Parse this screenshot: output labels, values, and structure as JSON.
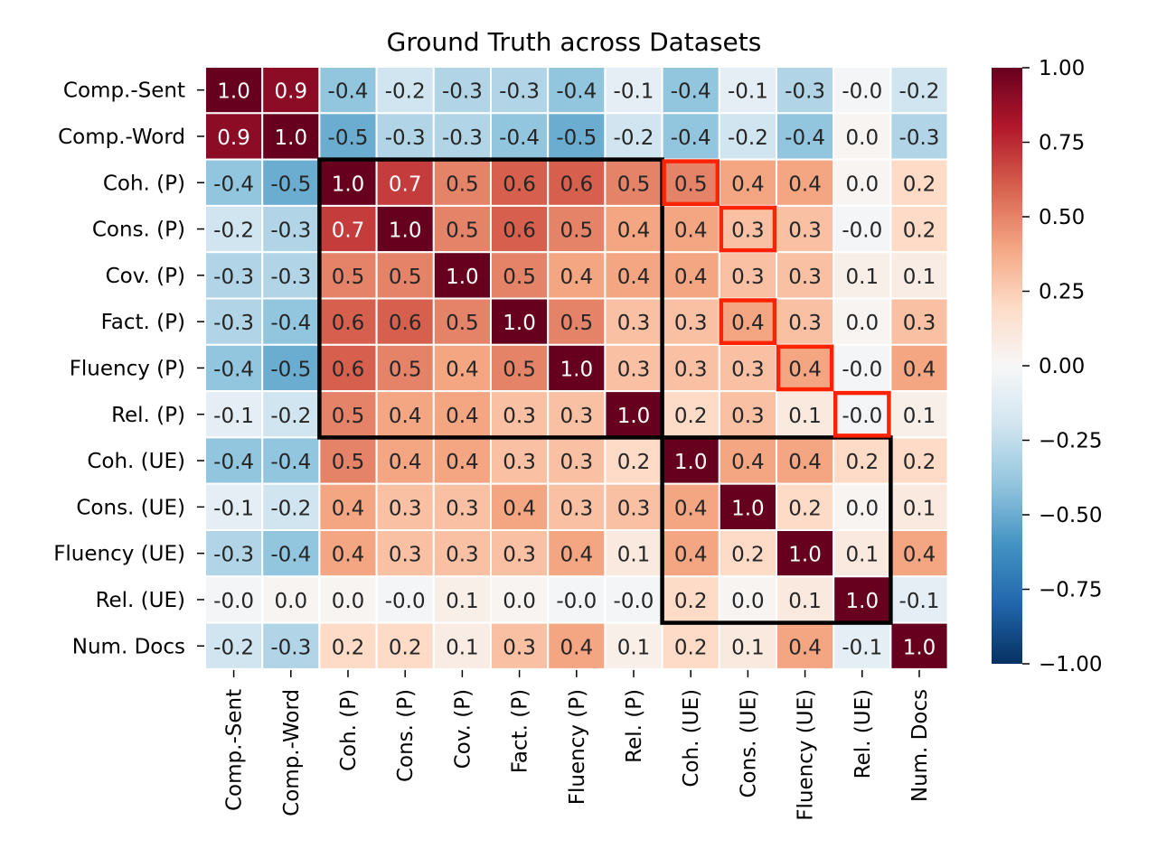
{
  "chart_data": {
    "type": "heatmap",
    "title": "Ground Truth across Datasets",
    "xlabel": "",
    "ylabel": "",
    "labels": [
      "Comp.-Sent",
      "Comp.-Word",
      "Coh. (P)",
      "Cons. (P)",
      "Cov. (P)",
      "Fact. (P)",
      "Fluency (P)",
      "Rel. (P)",
      "Coh. (UE)",
      "Cons. (UE)",
      "Fluency (UE)",
      "Rel. (UE)",
      "Num. Docs"
    ],
    "cell_labels": [
      [
        "1.0",
        "0.9",
        "-0.4",
        "-0.2",
        "-0.3",
        "-0.3",
        "-0.4",
        "-0.1",
        "-0.4",
        "-0.1",
        "-0.3",
        "-0.0",
        "-0.2"
      ],
      [
        "0.9",
        "1.0",
        "-0.5",
        "-0.3",
        "-0.3",
        "-0.4",
        "-0.5",
        "-0.2",
        "-0.4",
        "-0.2",
        "-0.4",
        "0.0",
        "-0.3"
      ],
      [
        "-0.4",
        "-0.5",
        "1.0",
        "0.7",
        "0.5",
        "0.6",
        "0.6",
        "0.5",
        "0.5",
        "0.4",
        "0.4",
        "0.0",
        "0.2"
      ],
      [
        "-0.2",
        "-0.3",
        "0.7",
        "1.0",
        "0.5",
        "0.6",
        "0.5",
        "0.4",
        "0.4",
        "0.3",
        "0.3",
        "-0.0",
        "0.2"
      ],
      [
        "-0.3",
        "-0.3",
        "0.5",
        "0.5",
        "1.0",
        "0.5",
        "0.4",
        "0.4",
        "0.4",
        "0.3",
        "0.3",
        "0.1",
        "0.1"
      ],
      [
        "-0.3",
        "-0.4",
        "0.6",
        "0.6",
        "0.5",
        "1.0",
        "0.5",
        "0.3",
        "0.3",
        "0.4",
        "0.3",
        "0.0",
        "0.3"
      ],
      [
        "-0.4",
        "-0.5",
        "0.6",
        "0.5",
        "0.4",
        "0.5",
        "1.0",
        "0.3",
        "0.3",
        "0.3",
        "0.4",
        "-0.0",
        "0.4"
      ],
      [
        "-0.1",
        "-0.2",
        "0.5",
        "0.4",
        "0.4",
        "0.3",
        "0.3",
        "1.0",
        "0.2",
        "0.3",
        "0.1",
        "-0.0",
        "0.1"
      ],
      [
        "-0.4",
        "-0.4",
        "0.5",
        "0.4",
        "0.4",
        "0.3",
        "0.3",
        "0.2",
        "1.0",
        "0.4",
        "0.4",
        "0.2",
        "0.2"
      ],
      [
        "-0.1",
        "-0.2",
        "0.4",
        "0.3",
        "0.3",
        "0.4",
        "0.3",
        "0.3",
        "0.4",
        "1.0",
        "0.2",
        "0.0",
        "0.1"
      ],
      [
        "-0.3",
        "-0.4",
        "0.4",
        "0.3",
        "0.3",
        "0.3",
        "0.4",
        "0.1",
        "0.4",
        "0.2",
        "1.0",
        "0.1",
        "0.4"
      ],
      [
        "-0.0",
        "0.0",
        "0.0",
        "-0.0",
        "0.1",
        "0.0",
        "-0.0",
        "-0.0",
        "0.2",
        "0.0",
        "0.1",
        "1.0",
        "-0.1"
      ],
      [
        "-0.2",
        "-0.3",
        "0.2",
        "0.2",
        "0.1",
        "0.3",
        "0.4",
        "0.1",
        "0.2",
        "0.1",
        "0.4",
        "-0.1",
        "1.0"
      ]
    ],
    "values": [
      [
        1.0,
        0.9,
        -0.4,
        -0.2,
        -0.3,
        -0.3,
        -0.4,
        -0.1,
        -0.4,
        -0.1,
        -0.3,
        -0.02,
        -0.2
      ],
      [
        0.9,
        1.0,
        -0.5,
        -0.3,
        -0.3,
        -0.4,
        -0.5,
        -0.2,
        -0.4,
        -0.2,
        -0.4,
        0.02,
        -0.3
      ],
      [
        -0.4,
        -0.5,
        1.0,
        0.7,
        0.5,
        0.6,
        0.6,
        0.5,
        0.5,
        0.4,
        0.4,
        0.02,
        0.2
      ],
      [
        -0.2,
        -0.3,
        0.7,
        1.0,
        0.5,
        0.6,
        0.5,
        0.4,
        0.4,
        0.3,
        0.3,
        -0.02,
        0.2
      ],
      [
        -0.3,
        -0.3,
        0.5,
        0.5,
        1.0,
        0.5,
        0.4,
        0.4,
        0.4,
        0.3,
        0.3,
        0.06,
        0.08
      ],
      [
        -0.3,
        -0.4,
        0.6,
        0.6,
        0.5,
        1.0,
        0.5,
        0.3,
        0.3,
        0.4,
        0.3,
        0.02,
        0.3
      ],
      [
        -0.4,
        -0.5,
        0.6,
        0.5,
        0.4,
        0.5,
        1.0,
        0.3,
        0.3,
        0.3,
        0.4,
        -0.02,
        0.4
      ],
      [
        -0.1,
        -0.2,
        0.5,
        0.4,
        0.4,
        0.3,
        0.3,
        1.0,
        0.2,
        0.3,
        0.1,
        -0.02,
        0.06
      ],
      [
        -0.4,
        -0.4,
        0.5,
        0.4,
        0.4,
        0.3,
        0.3,
        0.2,
        1.0,
        0.4,
        0.4,
        0.2,
        0.2
      ],
      [
        -0.1,
        -0.2,
        0.4,
        0.3,
        0.3,
        0.4,
        0.3,
        0.3,
        0.4,
        1.0,
        0.2,
        0.02,
        0.1
      ],
      [
        -0.3,
        -0.4,
        0.4,
        0.3,
        0.3,
        0.3,
        0.4,
        0.1,
        0.4,
        0.2,
        1.0,
        0.1,
        0.4
      ],
      [
        -0.02,
        0.02,
        0.02,
        -0.02,
        0.06,
        0.02,
        -0.02,
        -0.02,
        0.2,
        0.02,
        0.1,
        1.0,
        -0.1
      ],
      [
        -0.2,
        -0.3,
        0.2,
        0.2,
        0.08,
        0.3,
        0.4,
        0.06,
        0.2,
        0.1,
        0.4,
        -0.1,
        1.0
      ]
    ],
    "colormap": "RdBu_r",
    "vmin": -1.0,
    "vmax": 1.0,
    "colorbar_ticks": [
      1.0,
      0.75,
      0.5,
      0.25,
      0.0,
      -0.25,
      -0.5,
      -0.75,
      -1.0
    ],
    "colorbar_tick_labels": [
      "1.00",
      "0.75",
      "0.50",
      "0.25",
      "0.00",
      "−0.25",
      "−0.50",
      "−0.75",
      "−1.00"
    ],
    "black_boxes": [
      {
        "row_start": 2,
        "row_end": 7,
        "col_start": 2,
        "col_end": 7
      },
      {
        "row_start": 8,
        "row_end": 11,
        "col_start": 8,
        "col_end": 11
      }
    ],
    "red_highlights": [
      {
        "row": 2,
        "col": 8
      },
      {
        "row": 3,
        "col": 9
      },
      {
        "row": 5,
        "col": 9
      },
      {
        "row": 6,
        "col": 10
      },
      {
        "row": 7,
        "col": 11
      }
    ],
    "colors": {
      "black_box": "#000000",
      "red_highlight": "#ff2200",
      "grid_line": "#ffffff",
      "text": "#000000"
    }
  }
}
